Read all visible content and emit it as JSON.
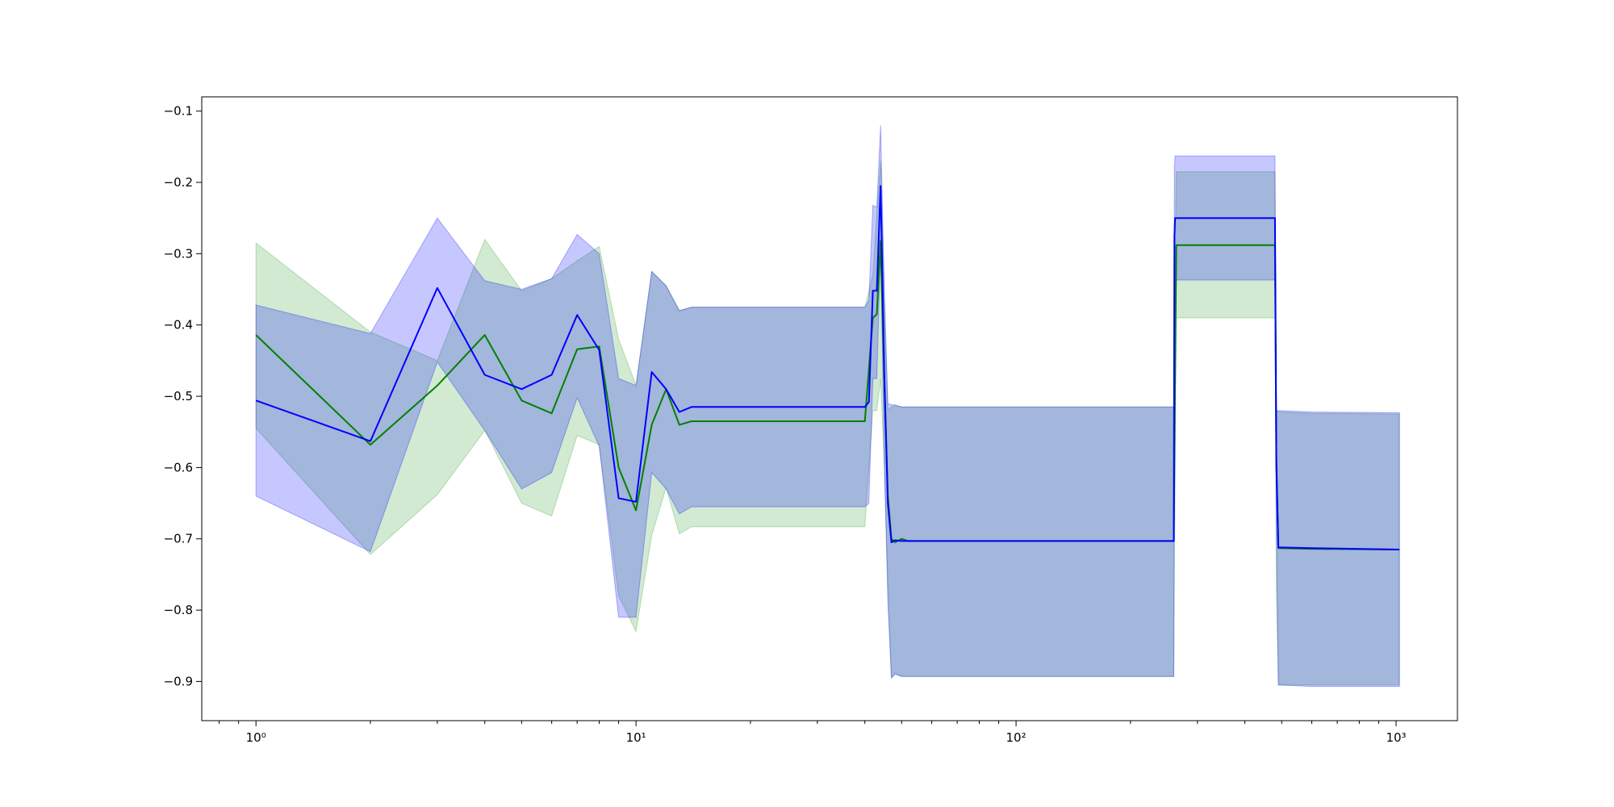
{
  "chart_data": {
    "type": "line",
    "title": "",
    "xlabel": "",
    "ylabel": "",
    "xscale": "log",
    "xlim": [
      0.72,
      1450
    ],
    "ylim": [
      -0.955,
      -0.08
    ],
    "grid": false,
    "legend": "none",
    "x_ticks": [
      {
        "value": 1,
        "label": "10⁰"
      },
      {
        "value": 10,
        "label": "10¹"
      },
      {
        "value": 100,
        "label": "10²"
      },
      {
        "value": 1000,
        "label": "10³"
      }
    ],
    "y_ticks": [
      {
        "value": -0.1,
        "label": "−0.1"
      },
      {
        "value": -0.2,
        "label": "−0.2"
      },
      {
        "value": -0.3,
        "label": "−0.3"
      },
      {
        "value": -0.4,
        "label": "−0.4"
      },
      {
        "value": -0.5,
        "label": "−0.5"
      },
      {
        "value": -0.6,
        "label": "−0.6"
      },
      {
        "value": -0.7,
        "label": "−0.7"
      },
      {
        "value": -0.8,
        "label": "−0.8"
      },
      {
        "value": -0.9,
        "label": "−0.9"
      }
    ],
    "series": [
      {
        "color": "#008000",
        "band_color": "#2ca02c",
        "x": [
          1,
          2,
          3,
          4,
          5,
          6,
          7,
          8,
          9,
          10,
          11,
          12,
          13,
          14,
          40,
          42,
          43,
          44,
          45,
          46,
          47,
          48,
          50,
          52,
          260,
          262,
          264,
          480,
          484,
          490,
          600,
          1020
        ],
        "y": [
          -0.414,
          -0.568,
          -0.485,
          -0.414,
          -0.506,
          -0.524,
          -0.434,
          -0.43,
          -0.6,
          -0.66,
          -0.54,
          -0.49,
          -0.54,
          -0.535,
          -0.535,
          -0.39,
          -0.385,
          -0.282,
          -0.48,
          -0.64,
          -0.7,
          -0.705,
          -0.7,
          -0.703,
          -0.703,
          -0.475,
          -0.288,
          -0.288,
          -0.59,
          -0.713,
          -0.714,
          -0.715
        ],
        "upper": [
          -0.285,
          -0.41,
          -0.45,
          -0.28,
          -0.352,
          -0.335,
          -0.31,
          -0.29,
          -0.42,
          -0.485,
          -0.325,
          -0.345,
          -0.38,
          -0.375,
          -0.375,
          -0.33,
          -0.245,
          -0.17,
          -0.36,
          -0.52,
          -0.515,
          -0.513,
          -0.515,
          -0.515,
          -0.515,
          -0.32,
          -0.185,
          -0.185,
          -0.52,
          -0.522,
          -0.524,
          -0.525
        ],
        "lower": [
          -0.545,
          -0.722,
          -0.638,
          -0.548,
          -0.65,
          -0.668,
          -0.555,
          -0.568,
          -0.78,
          -0.83,
          -0.695,
          -0.628,
          -0.693,
          -0.683,
          -0.683,
          -0.52,
          -0.52,
          -0.475,
          -0.6,
          -0.76,
          -0.895,
          -0.888,
          -0.893,
          -0.893,
          -0.893,
          -0.625,
          -0.39,
          -0.39,
          -0.78,
          -0.905,
          -0.905,
          -0.905
        ]
      },
      {
        "color": "#0000ff",
        "band_color": "#0000ff",
        "x": [
          1,
          2,
          3,
          4,
          5,
          6,
          7,
          8,
          9,
          10,
          11,
          12,
          13,
          14,
          40,
          41,
          42,
          43,
          44,
          45,
          46,
          47,
          48,
          50,
          52,
          260,
          261,
          262,
          264,
          480,
          484,
          490,
          600,
          1020
        ],
        "y": [
          -0.506,
          -0.563,
          -0.348,
          -0.47,
          -0.49,
          -0.47,
          -0.386,
          -0.435,
          -0.643,
          -0.648,
          -0.466,
          -0.49,
          -0.522,
          -0.515,
          -0.515,
          -0.508,
          -0.352,
          -0.352,
          -0.205,
          -0.47,
          -0.65,
          -0.705,
          -0.702,
          -0.703,
          -0.703,
          -0.703,
          -0.275,
          -0.25,
          -0.25,
          -0.25,
          -0.595,
          -0.712,
          -0.713,
          -0.715
        ],
        "upper": [
          -0.372,
          -0.412,
          -0.25,
          -0.338,
          -0.35,
          -0.335,
          -0.273,
          -0.3,
          -0.475,
          -0.485,
          -0.325,
          -0.345,
          -0.38,
          -0.375,
          -0.375,
          -0.365,
          -0.232,
          -0.235,
          -0.12,
          -0.35,
          -0.51,
          -0.512,
          -0.512,
          -0.515,
          -0.515,
          -0.515,
          -0.18,
          -0.163,
          -0.163,
          -0.163,
          -0.52,
          -0.52,
          -0.522,
          -0.523
        ],
        "lower": [
          -0.64,
          -0.718,
          -0.452,
          -0.548,
          -0.63,
          -0.607,
          -0.502,
          -0.57,
          -0.81,
          -0.81,
          -0.607,
          -0.63,
          -0.665,
          -0.655,
          -0.655,
          -0.65,
          -0.475,
          -0.475,
          -0.29,
          -0.59,
          -0.79,
          -0.895,
          -0.89,
          -0.893,
          -0.893,
          -0.893,
          -0.37,
          -0.337,
          -0.337,
          -0.337,
          -0.67,
          -0.905,
          -0.907,
          -0.907
        ]
      }
    ]
  }
}
